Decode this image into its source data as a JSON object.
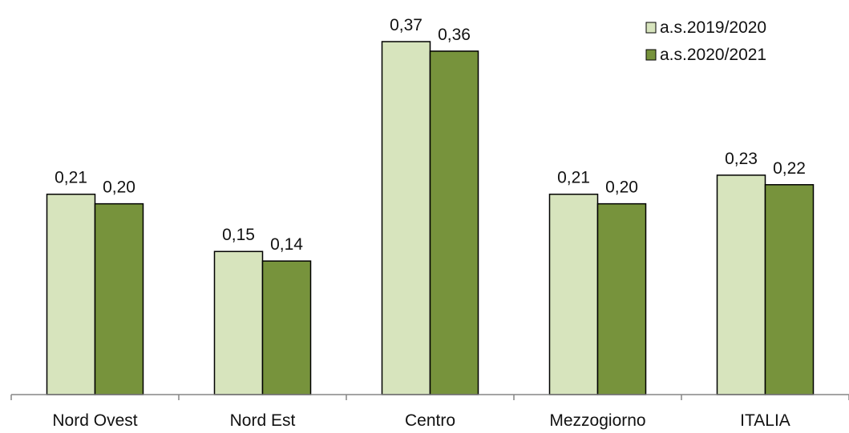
{
  "chart_data": {
    "type": "bar",
    "categories": [
      "Nord Ovest",
      "Nord Est",
      "Centro",
      "Mezzogiorno",
      "ITALIA"
    ],
    "series": [
      {
        "name": "a.s.2019/2020",
        "values": [
          0.21,
          0.15,
          0.37,
          0.21,
          0.23
        ],
        "labels": [
          "0,21",
          "0,15",
          "0,37",
          "0,21",
          "0,23"
        ],
        "color": "#d7e4bd"
      },
      {
        "name": "a.s.2020/2021",
        "values": [
          0.2,
          0.14,
          0.36,
          0.2,
          0.22
        ],
        "labels": [
          "0,20",
          "0,14",
          "0,36",
          "0,20",
          "0,22"
        ],
        "color": "#77933c"
      }
    ],
    "title": "",
    "xlabel": "",
    "ylabel": "",
    "ylim": [
      0,
      0.37
    ],
    "grid": false,
    "legend": "top-right",
    "bar_outline_color": "#000000",
    "axis_color": "#868686"
  }
}
